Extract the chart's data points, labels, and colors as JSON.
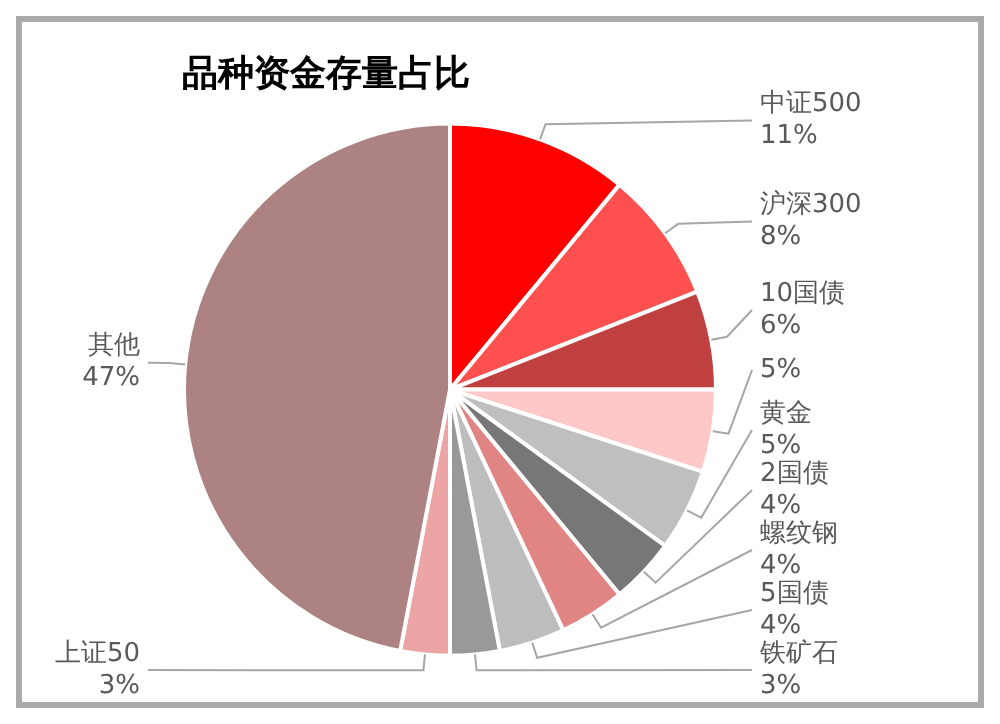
{
  "chart_data": {
    "type": "pie",
    "title": "品种资金存量占比",
    "categories": [
      "中证500",
      "沪深300",
      "10国债",
      null,
      "黄金",
      "2国债",
      "螺纹钢",
      "5国债",
      "铁矿石",
      "上证50",
      "其他"
    ],
    "values": [
      11,
      8,
      6,
      5,
      5,
      4,
      4,
      4,
      3,
      3,
      47
    ],
    "value_labels": [
      "11%",
      "8%",
      "6%",
      "5%",
      "5%",
      "4%",
      "4%",
      "4%",
      "3%",
      "3%",
      "47%"
    ],
    "colors": [
      "#ff0000",
      "#ff5050",
      "#c04040",
      "#ffc8c8",
      "#bfbfbf",
      "#777777",
      "#e08484",
      "#bdbdbd",
      "#999999",
      "#eca4a4",
      "#ad8282"
    ],
    "legend": false
  }
}
